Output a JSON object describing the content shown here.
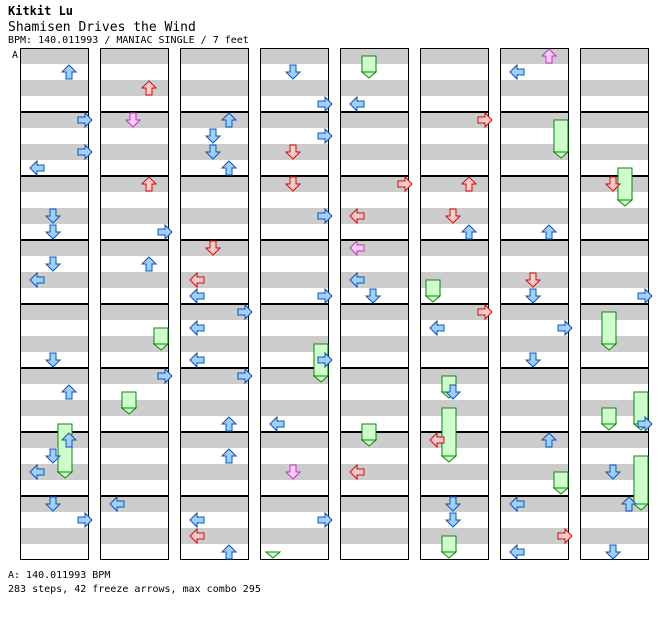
{
  "header": {
    "artist": "Kitkit Lu",
    "title": "Shamisen Drives the Wind",
    "info": "BPM: 140.011993 / MANIAC SINGLE / 7 feet"
  },
  "chart": {
    "bpm_marker": "A",
    "columns": 8,
    "measures_per_column": 8
  },
  "footer": {
    "bpm_line": "A: 140.011993 BPM",
    "stats": "283 steps, 42 freeze arrows, max combo 295"
  },
  "colors": {
    "band_gray": "#cccccc",
    "red_note": "#ffc8c8",
    "red_outline": "#c01010",
    "blue_note": "#a0d0ff",
    "blue_outline": "#1050b0",
    "green_note": "#ccffcc",
    "green_outline": "#108010",
    "pink_note": "#ffc8ff",
    "pink_outline": "#b040b0"
  }
}
